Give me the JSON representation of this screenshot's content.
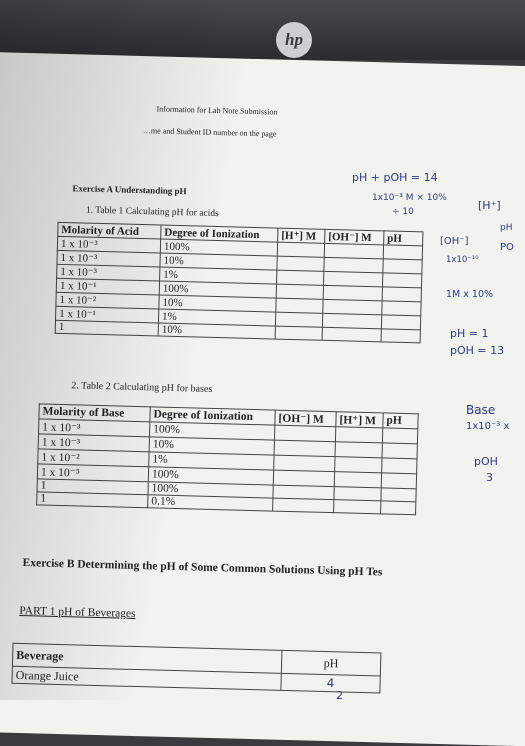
{
  "header": {
    "line1": "Information for Lab Note Submission",
    "line2": "…me and Student ID number on the page"
  },
  "exercise_a": {
    "title": "Exercise A Understanding pH",
    "table1_caption": "1.  Table 1 Calculating pH for acids"
  },
  "table1": {
    "headers": [
      "Molarity of Acid",
      "Degree of Ionization",
      "[H⁺] M",
      "[OH⁻] M",
      "pH"
    ],
    "rows": [
      [
        "1 x 10⁻³",
        "100%",
        "",
        "",
        ""
      ],
      [
        "1 x 10⁻³",
        "10%",
        "",
        "",
        ""
      ],
      [
        "1 x 10⁻³",
        "1%",
        "",
        "",
        ""
      ],
      [
        "1 x 10⁻¹",
        "100%",
        "",
        "",
        ""
      ],
      [
        "1 x 10⁻²",
        "10%",
        "",
        "",
        ""
      ],
      [
        "1 x 10⁻¹",
        "1%",
        "",
        "",
        ""
      ],
      [
        "1",
        "10%",
        "",
        "",
        ""
      ]
    ]
  },
  "table2_caption": "2.  Table 2 Calculating pH for bases",
  "table2": {
    "headers": [
      "Molarity of Base",
      "Degree of Ionization",
      "[OH⁻] M",
      "[H⁺] M",
      "pH"
    ],
    "rows": [
      [
        "1 x 10⁻³",
        "100%",
        "",
        "",
        ""
      ],
      [
        "1 x 10⁻³",
        "10%",
        "",
        "",
        ""
      ],
      [
        "1 x 10⁻²",
        "1%",
        "",
        "",
        ""
      ],
      [
        "1 x 10⁻⁵",
        "100%",
        "",
        "",
        ""
      ],
      [
        "1",
        "100%",
        "",
        "",
        ""
      ],
      [
        "1",
        "0.1%",
        "",
        "",
        ""
      ]
    ]
  },
  "exercise_b": {
    "title": "Exercise B Determining the pH of Some Common Solutions Using pH Tes",
    "part1": "PART 1 pH of Beverages"
  },
  "beverages": {
    "headers": [
      "Beverage",
      "pH"
    ],
    "rows": [
      [
        "Orange Juice",
        "4"
      ]
    ]
  },
  "handwriting": {
    "eq1": "pH + pOH = 14",
    "eq2": "1x10⁻³ M × 10%",
    "eq3": "÷ 10",
    "bracket_h": "[H⁺]",
    "oh_note": "[OH⁻]",
    "ph_note": "pH",
    "po_note": "PO",
    "conc_note": "1x10⁻¹⁰",
    "im_note": "1M x 10%",
    "ph1": "pH = 1",
    "poh13": "pOH = 13",
    "base": "Base",
    "base_conc": "1x10⁻³ x",
    "poh": "pOH",
    "poh_val": "3",
    "oj_extra": "2"
  }
}
